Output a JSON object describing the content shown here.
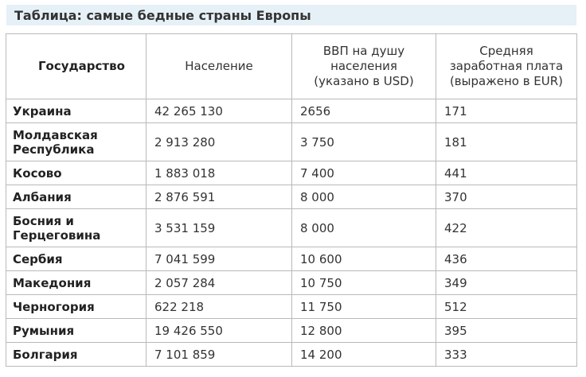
{
  "title": "Таблица: самые бедные страны Европы",
  "headers": {
    "country": "Государство",
    "population": "Население",
    "gdp_line1": "ВВП на душу",
    "gdp_line2": "населения",
    "gdp_line3": "(указано в USD)",
    "salary_line1": "Средняя",
    "salary_line2": "заработная плата",
    "salary_line3": "(выражено в EUR)"
  },
  "rows": [
    {
      "country_line1": "Украина",
      "country_line2": "",
      "population": "42 265 130",
      "gdp": "2656",
      "salary": "171"
    },
    {
      "country_line1": "Молдавская",
      "country_line2": "Республика",
      "population": "2 913 280",
      "gdp": "3 750",
      "salary": "181"
    },
    {
      "country_line1": "Косово",
      "country_line2": "",
      "population": "1 883 018",
      "gdp": "7 400",
      "salary": "441"
    },
    {
      "country_line1": "Албания",
      "country_line2": "",
      "population": "2 876 591",
      "gdp": "8 000",
      "salary": "370"
    },
    {
      "country_line1": "Босния и",
      "country_line2": "Герцеговина",
      "population": "3 531 159",
      "gdp": "8 000",
      "salary": "422"
    },
    {
      "country_line1": "Сербия",
      "country_line2": "",
      "population": "7 041 599",
      "gdp": "10 600",
      "salary": "436"
    },
    {
      "country_line1": "Македония",
      "country_line2": "",
      "population": "2 057 284",
      "gdp": "10 750",
      "salary": "349"
    },
    {
      "country_line1": "Черногория",
      "country_line2": "",
      "population": "622 218",
      "gdp": "11 750",
      "salary": "512"
    },
    {
      "country_line1": "Румыния",
      "country_line2": "",
      "population": "19 426 550",
      "gdp": "12 800",
      "salary": "395"
    },
    {
      "country_line1": "Болгария",
      "country_line2": "",
      "population": "7 101 859",
      "gdp": "14 200",
      "salary": "333"
    }
  ],
  "colors": {
    "title_background": "#e6f0f7",
    "border": "#b9b9b9"
  }
}
